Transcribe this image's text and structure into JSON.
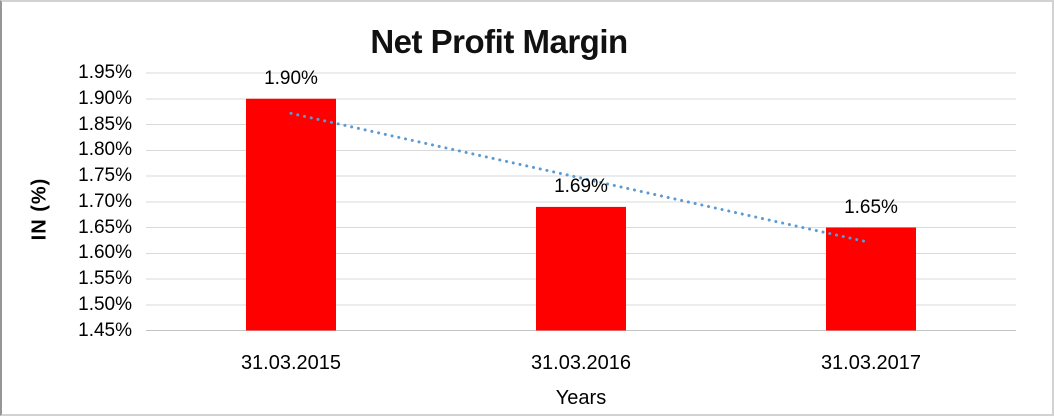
{
  "chart_data": {
    "type": "bar",
    "title": "Net Profit Margin",
    "xlabel": "Years",
    "ylabel": "IN (%)",
    "categories": [
      "31.03.2015",
      "31.03.2016",
      "31.03.2017"
    ],
    "values": [
      1.9,
      1.69,
      1.65
    ],
    "data_labels": [
      "1.90%",
      "1.69%",
      "1.65%"
    ],
    "ylim": [
      1.45,
      1.95
    ],
    "ytick_step": 0.05,
    "ytick_labels": [
      "1.95%",
      "1.90%",
      "1.85%",
      "1.80%",
      "1.75%",
      "1.70%",
      "1.65%",
      "1.60%",
      "1.55%",
      "1.50%",
      "1.45%"
    ],
    "grid": true,
    "legend_position": "none",
    "bar_color": "#FF0000",
    "trendline": {
      "type": "linear",
      "line_style": "dotted",
      "color": "#5B9BD5"
    }
  },
  "colors": {
    "bar": "#FF0000",
    "trendline": "#5B9BD5",
    "gridline": "#D9D9D9",
    "axis_line": "#C3C3C3",
    "text": "#000000",
    "background": "#FFFFFF",
    "frame_border": "#D2D2D2"
  }
}
